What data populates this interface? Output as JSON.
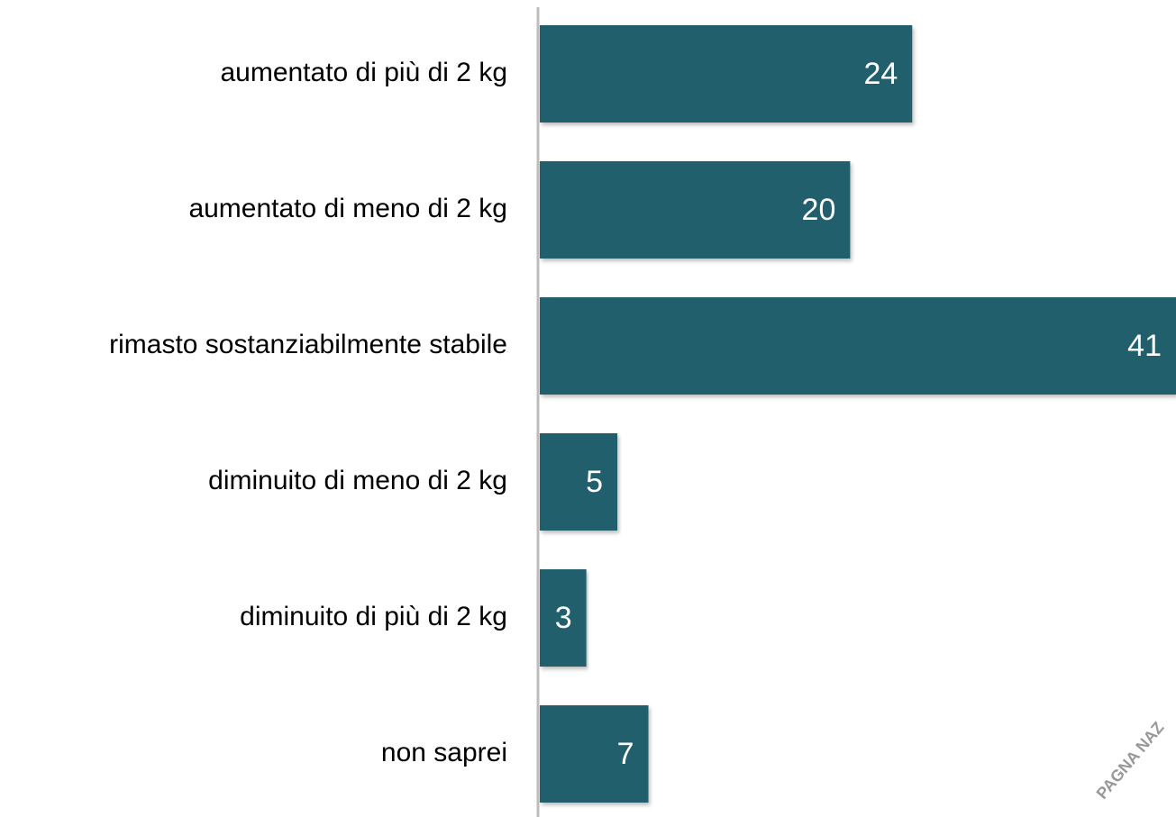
{
  "chart_data": {
    "type": "barh",
    "categories": [
      "aumentato di più di 2 kg",
      "aumentato di meno di 2 kg",
      "rimasto sostanziabilmente stabile",
      "diminuito di meno di 2 kg",
      "diminuito di più di 2 kg",
      "non saprei"
    ],
    "values": [
      24,
      20,
      41,
      5,
      3,
      7
    ],
    "color": "#245e6d",
    "xlim": [
      0,
      41
    ],
    "watermark": "PAGNA NAZ"
  }
}
